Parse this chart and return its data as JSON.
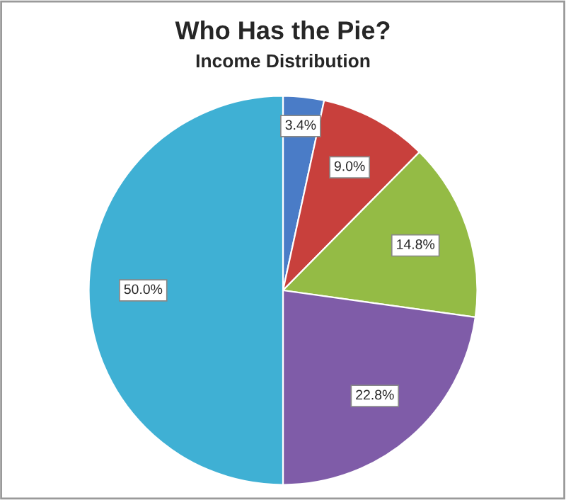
{
  "chart_data": {
    "type": "pie",
    "title": "Who Has the Pie?",
    "subtitle": "Income Distribution",
    "categories": [
      null,
      null,
      null,
      null,
      null
    ],
    "values": [
      3.4,
      9.0,
      14.8,
      22.8,
      50.0
    ],
    "colors": [
      "#4a7cc7",
      "#c8403c",
      "#94bb45",
      "#7f5ca8",
      "#3fb0d4"
    ],
    "value_labels": [
      "3.4%",
      "9.0%",
      "14.8%",
      "22.8%",
      "50.0%"
    ],
    "legend": false
  }
}
